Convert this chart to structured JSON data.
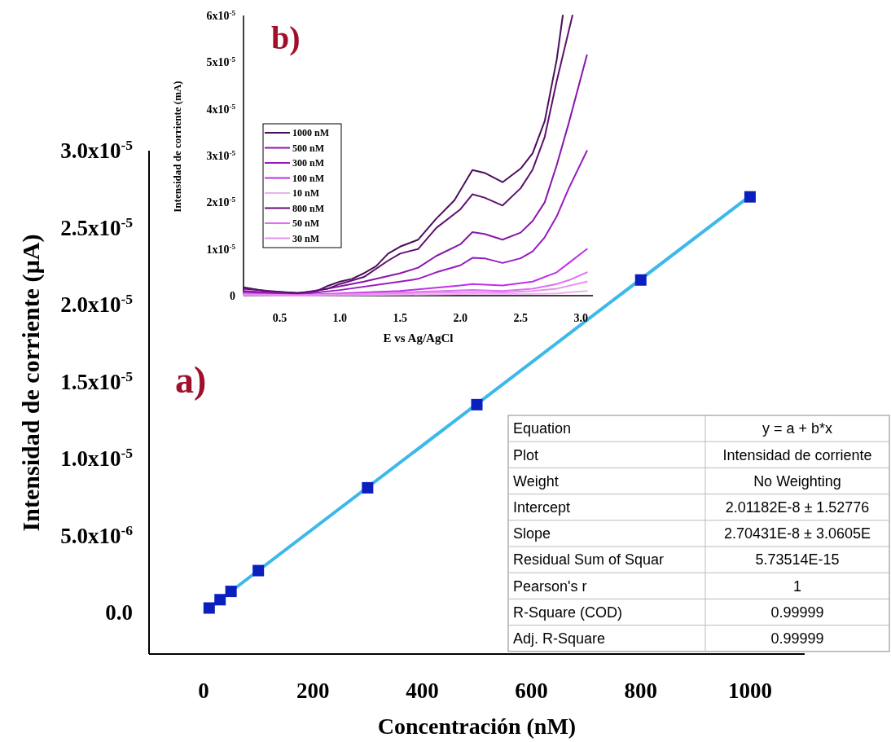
{
  "chart_data": [
    {
      "type": "scatter",
      "xlabel": "Concentración (nM)",
      "ylabel": "Intensidad de corriente (µA)",
      "xlim": [
        -100,
        1100
      ],
      "ylim": [
        -2.7e-06,
        3e-05
      ],
      "xticks": [
        0,
        200,
        400,
        600,
        800,
        1000
      ],
      "yticks": [
        {
          "value": 0,
          "label": "0.0"
        },
        {
          "value": 5e-06,
          "label": "5.0x10$^{-6}$"
        },
        {
          "value": 1e-05,
          "label": "1.0x10$^{-5}$"
        },
        {
          "value": 1.5e-05,
          "label": "1.5x10$^{-5}$"
        },
        {
          "value": 2e-05,
          "label": "2.0x10$^{-5}$"
        },
        {
          "value": 2.5e-05,
          "label": "2.5x10$^{-5}$"
        },
        {
          "value": 3e-05,
          "label": "3.0x10$^{-5}$"
        }
      ],
      "grid": false,
      "series": [
        {
          "type": "line",
          "color": "#3cb8ea",
          "x": [
            10,
            1000
          ],
          "values": [
            2.9e-07,
            2.706e-05
          ]
        },
        {
          "type": "scatter",
          "marker": "square",
          "color": "#0b1fbf",
          "x": [
            10,
            30,
            50,
            100,
            300,
            500,
            800,
            1000
          ],
          "values": [
            2.9e-07,
            8.3e-07,
            1.37e-06,
            2.72e-06,
            8.1e-06,
            1.35e-05,
            2.16e-05,
            2.7e-05
          ]
        }
      ],
      "annotations": [
        "a)",
        "Equation",
        "y = a + b*x",
        "Plot",
        "Intensidad de corriente",
        "Weight",
        "No Weighting",
        "Intercept",
        "2.01182E-8 ± 1.52776",
        "Slope",
        "2.70431E-8 ± 3.0605E",
        "Residual Sum of Squar",
        "5.73514E-15",
        "Pearson's r",
        "1",
        "R-Square (COD)",
        "0.99999",
        "Adj. R-Square",
        "0.99999"
      ]
    },
    {
      "type": "line",
      "xlabel": "E vs Ag/AgCl",
      "ylabel": "Intensidad de corriente (mA)",
      "xlim": [
        0.2,
        3.1
      ],
      "ylim": [
        0,
        6e-05
      ],
      "xticks": [
        {
          "value": 0.5,
          "label": "0.5"
        },
        {
          "value": 1,
          "label": "1.0"
        },
        {
          "value": 1.5,
          "label": "1.5"
        },
        {
          "value": 2,
          "label": "2.0"
        },
        {
          "value": 2.5,
          "label": "2.5"
        },
        {
          "value": 3,
          "label": "3.0"
        }
      ],
      "yticks": [
        {
          "value": 0,
          "label": "0"
        },
        {
          "value": 1e-05,
          "label": "1x10$^{-5}$"
        },
        {
          "value": 2e-05,
          "label": "2x10$^{-5}$"
        },
        {
          "value": 3e-05,
          "label": "3x10$^{-5}$"
        },
        {
          "value": 4e-05,
          "label": "4x10$^{-5}$"
        },
        {
          "value": 5e-05,
          "label": "5x10$^{-5}$"
        },
        {
          "value": 6e-05,
          "label": "6x10$^{-5}$"
        }
      ],
      "grid": false,
      "legend": "left",
      "line_style": "solid",
      "annotations": [
        "b)"
      ],
      "series": [
        {
          "name": "1000 nM",
          "color": "#4a0f5a",
          "x": [
            0.2,
            0.4,
            0.65,
            0.8,
            0.9,
            1.0,
            1.1,
            1.2,
            1.3,
            1.4,
            1.5,
            1.65,
            1.8,
            1.95,
            2.1,
            2.2,
            2.35,
            2.5,
            2.6,
            2.7,
            2.8,
            2.85
          ],
          "values": [
            1.8e-06,
            9e-07,
            6e-07,
            9e-07,
            2.1e-06,
            3e-06,
            3.6e-06,
            4.8e-06,
            6.3e-06,
            9e-06,
            1.05e-05,
            1.2e-05,
            1.65e-05,
            2.04e-05,
            2.69e-05,
            2.63e-05,
            2.43e-05,
            2.72e-05,
            3.05e-05,
            3.74e-05,
            5.06e-05,
            6e-05
          ]
        },
        {
          "name": "500 nM",
          "color": "#8a16a8",
          "x": [
            0.2,
            0.65,
            1.0,
            1.2,
            1.5,
            1.65,
            1.8,
            2.0,
            2.1,
            2.2,
            2.35,
            2.5,
            2.6,
            2.7,
            2.8,
            2.9,
            3.05
          ],
          "values": [
            1e-06,
            3e-07,
            2e-06,
            3e-06,
            4.8e-06,
            6e-06,
            8.5e-06,
            1.1e-05,
            1.36e-05,
            1.32e-05,
            1.2e-05,
            1.35e-05,
            1.6e-05,
            2e-05,
            2.8e-05,
            3.7e-05,
            5.15e-05
          ]
        },
        {
          "name": "300 nM",
          "color": "#9a1ac0",
          "x": [
            0.2,
            0.65,
            1.0,
            1.5,
            1.65,
            1.8,
            2.0,
            2.1,
            2.2,
            2.35,
            2.5,
            2.6,
            2.7,
            2.8,
            2.9,
            3.05
          ],
          "values": [
            8e-07,
            2e-07,
            1.2e-06,
            3e-06,
            3.6e-06,
            5e-06,
            6.5e-06,
            8.1e-06,
            8e-06,
            7e-06,
            8e-06,
            9.5e-06,
            1.25e-05,
            1.7e-05,
            2.3e-05,
            3.1e-05
          ]
        },
        {
          "name": "100 nM",
          "color": "#c030e8",
          "x": [
            0.2,
            0.65,
            1.0,
            1.5,
            2.0,
            2.1,
            2.35,
            2.6,
            2.8,
            2.9,
            3.05
          ],
          "values": [
            5e-07,
            1e-07,
            5e-07,
            1e-06,
            2.2e-06,
            2.5e-06,
            2.2e-06,
            3e-06,
            5e-06,
            7e-06,
            1e-05
          ]
        },
        {
          "name": "10 nM",
          "color": "#f0b0f0",
          "x": [
            0.2,
            0.65,
            1.5,
            2.1,
            2.6,
            2.8,
            3.05
          ],
          "values": [
            1e-07,
            0,
            2e-07,
            4e-07,
            4e-07,
            5e-07,
            1e-06
          ]
        },
        {
          "name": "800 nM",
          "color": "#5e1070",
          "x": [
            0.2,
            0.65,
            0.9,
            1.0,
            1.2,
            1.4,
            1.5,
            1.65,
            1.8,
            2.0,
            2.1,
            2.2,
            2.35,
            2.5,
            2.6,
            2.7,
            2.8,
            2.93
          ],
          "values": [
            1.5e-06,
            5e-07,
            1.5e-06,
            2.5e-06,
            4e-06,
            7.5e-06,
            9e-06,
            1e-05,
            1.45e-05,
            1.85e-05,
            2.17e-05,
            2.1e-05,
            1.93e-05,
            2.3e-05,
            2.7e-05,
            3.4e-05,
            4.6e-05,
            6e-05
          ]
        },
        {
          "name": "50 nM",
          "color": "#e070f0",
          "x": [
            0.2,
            0.65,
            1.0,
            1.5,
            2.1,
            2.35,
            2.6,
            2.8,
            2.9,
            3.05
          ],
          "values": [
            3e-07,
            1e-07,
            3e-07,
            7e-07,
            1.2e-06,
            1e-06,
            1.5e-06,
            2.5e-06,
            3.3e-06,
            5e-06
          ]
        },
        {
          "name": "30 nM",
          "color": "#e890f0",
          "x": [
            0.2,
            0.65,
            1.5,
            2.1,
            2.35,
            2.6,
            2.8,
            3.05
          ],
          "values": [
            2e-07,
            1e-07,
            5e-07,
            8e-07,
            7e-07,
            1e-06,
            1.5e-06,
            3e-06
          ]
        }
      ]
    }
  ]
}
